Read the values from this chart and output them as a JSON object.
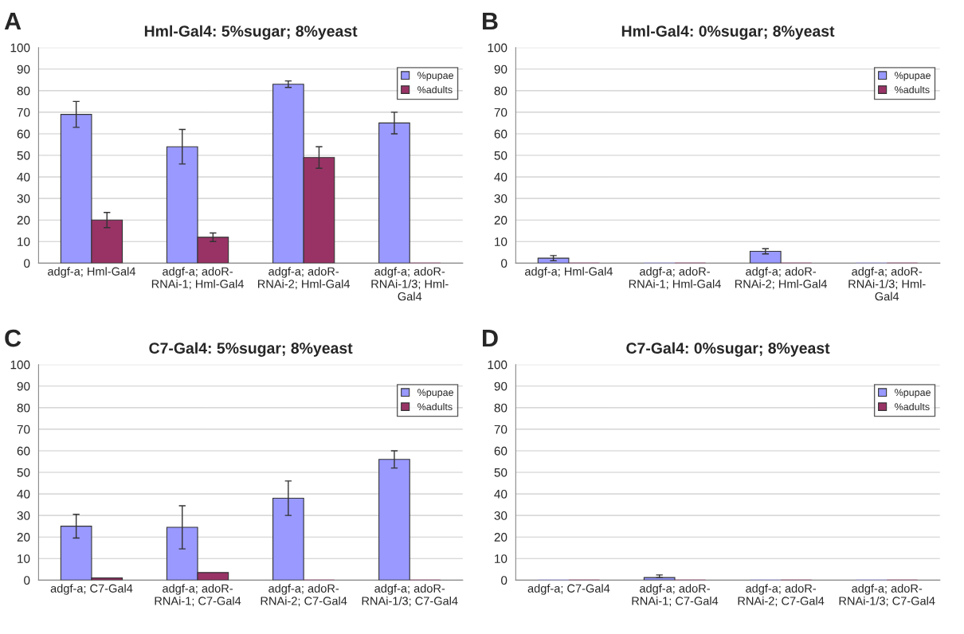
{
  "chart_data": [
    {
      "type": "bar",
      "title": "Hml-Gal4: 5%sugar; 8%yeast",
      "annotations": [
        "A"
      ],
      "categories": [
        "adgf-a; Hml-Gal4",
        "adgf-a; adoR-\nRNAi-1; Hml-Gal4",
        "adgf-a; adoR-\nRNAi-2; Hml-Gal4",
        "adgf-a; adoR-\nRNAi-1/3; Hml-\nGal4"
      ],
      "series": [
        {
          "name": "%pupae",
          "color": "#9999ff",
          "values": [
            69,
            54,
            83,
            65
          ],
          "errors": [
            6,
            8,
            1.5,
            5
          ]
        },
        {
          "name": "%adults",
          "color": "#993366",
          "values": [
            20,
            12,
            49,
            0
          ],
          "errors": [
            3.5,
            2,
            5,
            null
          ]
        }
      ],
      "ylim": [
        0,
        100
      ],
      "yticks": [
        0,
        10,
        20,
        30,
        40,
        50,
        60,
        70,
        80,
        90,
        100
      ],
      "grid": "y",
      "legend": "top right"
    },
    {
      "type": "bar",
      "title": "Hml-Gal4: 0%sugar; 8%yeast",
      "annotations": [
        "B"
      ],
      "categories": [
        "adgf-a; Hml-Gal4",
        "adgf-a; adoR-\nRNAi-1; Hml-Gal4",
        "adgf-a; adoR-\nRNAi-2; Hml-Gal4",
        "adgf-a; adoR-\nRNAi-1/3; Hml-\nGal4"
      ],
      "series": [
        {
          "name": "%pupae",
          "color": "#9999ff",
          "values": [
            2.3,
            0,
            5.5,
            0
          ],
          "errors": [
            1.2,
            null,
            1.2,
            null
          ]
        },
        {
          "name": "%adults",
          "color": "#993366",
          "values": [
            0,
            0,
            0,
            0
          ]
        }
      ],
      "ylim": [
        0,
        100
      ],
      "yticks": [
        0,
        10,
        20,
        30,
        40,
        50,
        60,
        70,
        80,
        90,
        100
      ],
      "grid": "y",
      "legend": "top right"
    },
    {
      "type": "bar",
      "title": "C7-Gal4: 5%sugar; 8%yeast",
      "annotations": [
        "C"
      ],
      "categories": [
        "adgf-a; C7-Gal4",
        "adgf-a; adoR-\nRNAi-1; C7-Gal4",
        "adgf-a; adoR-\nRNAi-2; C7-Gal4",
        "adgf-a; adoR-\nRNAi-1/3; C7-Gal4"
      ],
      "series": [
        {
          "name": "%pupae",
          "color": "#9999ff",
          "values": [
            25,
            24.5,
            38,
            56
          ],
          "errors": [
            5.5,
            10,
            8,
            4
          ]
        },
        {
          "name": "%adults",
          "color": "#993366",
          "values": [
            1,
            3.5,
            0,
            0
          ]
        }
      ],
      "ylim": [
        0,
        100
      ],
      "yticks": [
        0,
        10,
        20,
        30,
        40,
        50,
        60,
        70,
        80,
        90,
        100
      ],
      "grid": "y",
      "legend": "top right"
    },
    {
      "type": "bar",
      "title": "C7-Gal4: 0%sugar; 8%yeast",
      "annotations": [
        "D"
      ],
      "categories": [
        "adgf-a; C7-Gal4",
        "adgf-a; adoR-\nRNAi-1; C7-Gal4",
        "adgf-a; adoR-\nRNAi-2; C7-Gal4",
        "adgf-a; adoR-\nRNAi-1/3; C7-Gal4"
      ],
      "series": [
        {
          "name": "%pupae",
          "color": "#9999ff",
          "values": [
            0,
            1.2,
            0,
            0
          ],
          "errors": [
            null,
            [
              1.2,
              2.4
            ],
            null,
            null
          ]
        },
        {
          "name": "%adults",
          "color": "#993366",
          "values": [
            0,
            0,
            0,
            0
          ]
        }
      ],
      "ylim": [
        0,
        100
      ],
      "yticks": [
        0,
        10,
        20,
        30,
        40,
        50,
        60,
        70,
        80,
        90,
        100
      ],
      "grid": "y",
      "legend": "top right"
    }
  ]
}
